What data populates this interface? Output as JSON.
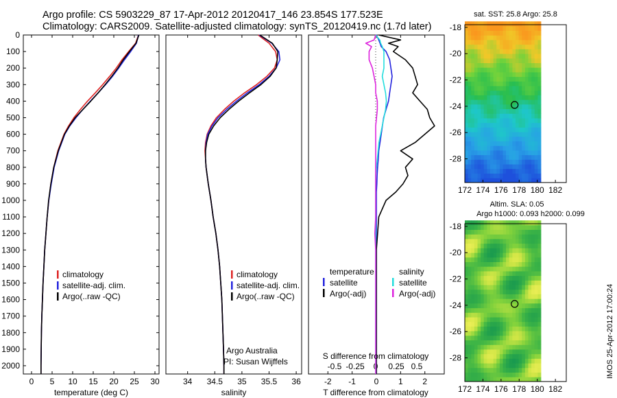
{
  "title_line1": "Argo profile: CS 5903229_87 17-Apr-2012 20120417_146 23.854S 177.523E",
  "title_line2": "Climatology: CARS2009. Satellite-adjusted climatology: synTS_20120419.nc (1.7d later)",
  "colors": {
    "climatology": "#dd2222",
    "satellite_adj": "#2222dd",
    "argo": "#000000",
    "sal_satellite": "#22dddd",
    "sal_argo": "#dd22dd",
    "circle": "#000000"
  },
  "depth_axis": {
    "ylim": [
      0,
      2050
    ],
    "ticks": [
      0,
      100,
      200,
      300,
      400,
      500,
      600,
      700,
      800,
      900,
      1000,
      1100,
      1200,
      1300,
      1400,
      1500,
      1600,
      1700,
      1800,
      1900,
      2000
    ]
  },
  "panels": {
    "temperature": {
      "xlabel": "temperature (deg C)",
      "xlim": [
        -2,
        31
      ],
      "xticks": [
        0,
        5,
        10,
        15,
        20,
        25,
        30
      ],
      "legend": [
        "climatology",
        "satellite-adj. clim.",
        "Argo(..raw -QC)"
      ]
    },
    "salinity": {
      "xlabel": "salinity",
      "xlim": [
        33.6,
        36.1
      ],
      "xticks": [
        34,
        34.5,
        35,
        35.5,
        36
      ],
      "xtick_labels": [
        "34",
        "34.5",
        "35",
        "35.5",
        "36"
      ],
      "legend": [
        "climatology",
        "satellite-adj. clim.",
        "Argo(..raw -QC)"
      ],
      "notes": [
        "Argo Australia",
        "PI: Susan Wijffels"
      ]
    },
    "difference": {
      "xlabel": "T difference from climatology",
      "top_label": "S difference from climatology",
      "xlim": [
        -2.8,
        2.8
      ],
      "t_ticks": [
        -2,
        -1,
        0,
        1,
        2
      ],
      "s_ticks": [
        -0.5,
        -0.25,
        0,
        0.25,
        0.5
      ],
      "s_tick_labels": [
        "-0.5",
        "-0.25",
        "0",
        "0.25",
        "0.5"
      ],
      "legend_temp_head": "temperature",
      "legend_temp": [
        "satellite",
        "Argo(-adj)"
      ],
      "legend_sal_head": "salinity",
      "legend_sal": [
        "satellite",
        "Argo(-adj)"
      ]
    }
  },
  "maps": {
    "sst_title": "sat. SST: 25.8 Argo: 25.8",
    "sla_title_1": "Altim. SLA: 0.05",
    "sla_title_2": "Argo h1000: 0.093 h2000: 0.099",
    "lon_ticks": [
      172,
      174,
      176,
      178,
      180,
      182
    ],
    "lat_ticks": [
      -18,
      -20,
      -22,
      -24,
      -26,
      -28
    ],
    "xlim": [
      172,
      183.2
    ],
    "ylim": [
      -29.8,
      -17.8
    ],
    "data_lon_max": 180.1,
    "argo_position": {
      "lon": 177.5,
      "lat": -23.9
    }
  },
  "footer": "IMOS 25-Apr-2012 17:00:24",
  "chart_data": [
    {
      "type": "line",
      "title": "",
      "xlabel": "temperature (deg C)",
      "ylabel": "",
      "xlim": [
        -2,
        31
      ],
      "ylim": [
        0,
        2050
      ],
      "y_reversed": true,
      "depth": [
        0,
        50,
        100,
        150,
        200,
        250,
        300,
        350,
        400,
        450,
        500,
        550,
        600,
        700,
        800,
        900,
        1000,
        1100,
        1200,
        1300,
        1400,
        1500,
        1600,
        1700,
        1800,
        1900,
        2000,
        2050
      ],
      "series": [
        {
          "name": "climatology",
          "x": [
            26.0,
            25.3,
            23.6,
            22.0,
            20.6,
            19.0,
            17.3,
            15.5,
            13.6,
            11.9,
            10.3,
            9.0,
            7.9,
            6.4,
            5.4,
            4.7,
            4.2,
            3.8,
            3.5,
            3.2,
            3.0,
            2.8,
            2.65,
            2.5,
            2.4,
            2.35,
            2.3,
            2.3
          ]
        },
        {
          "name": "satellite-adj. clim.",
          "x": [
            26.0,
            25.5,
            24.1,
            22.6,
            21.2,
            19.7,
            18.0,
            16.2,
            14.3,
            12.5,
            10.8,
            9.3,
            8.1,
            6.6,
            5.5,
            4.8,
            4.2,
            3.8,
            3.5,
            3.2,
            3.0,
            2.8,
            2.65,
            2.5,
            2.4,
            2.35,
            2.3,
            2.3
          ]
        },
        {
          "name": "Argo(..raw -QC)",
          "x": [
            26.1,
            25.4,
            23.8,
            22.3,
            21.0,
            19.5,
            17.9,
            16.2,
            14.4,
            12.5,
            10.6,
            9.2,
            8.0,
            6.5,
            5.4,
            4.7,
            4.15,
            3.8,
            3.5,
            3.2,
            3.0,
            2.8,
            2.65,
            2.5,
            2.4,
            2.35,
            2.3,
            2.3
          ]
        }
      ]
    },
    {
      "type": "line",
      "title": "",
      "xlabel": "salinity",
      "ylabel": "",
      "xlim": [
        33.6,
        36.1
      ],
      "ylim": [
        0,
        2050
      ],
      "y_reversed": true,
      "depth": [
        0,
        50,
        100,
        150,
        200,
        250,
        300,
        350,
        400,
        450,
        500,
        550,
        600,
        650,
        700,
        750,
        800,
        900,
        1000,
        1100,
        1200,
        1300,
        1400,
        1500,
        1600,
        1700,
        1800,
        1900,
        2000,
        2050
      ],
      "series": [
        {
          "name": "climatology",
          "x": [
            35.3,
            35.5,
            35.62,
            35.65,
            35.6,
            35.46,
            35.27,
            35.05,
            34.85,
            34.68,
            34.53,
            34.43,
            34.36,
            34.33,
            34.32,
            34.33,
            34.34,
            34.38,
            34.43,
            34.47,
            34.52,
            34.56,
            34.59,
            34.61,
            34.63,
            34.64,
            34.65,
            34.66,
            34.67,
            34.67
          ]
        },
        {
          "name": "satellite-adj. clim.",
          "x": [
            35.32,
            35.55,
            35.68,
            35.7,
            35.63,
            35.5,
            35.32,
            35.1,
            34.9,
            34.72,
            34.56,
            34.45,
            34.37,
            34.34,
            34.33,
            34.33,
            34.34,
            34.38,
            34.43,
            34.47,
            34.52,
            34.56,
            34.59,
            34.61,
            34.63,
            34.64,
            34.65,
            34.66,
            34.67,
            34.67
          ]
        },
        {
          "name": "Argo(..raw -QC)",
          "x": [
            35.33,
            35.56,
            35.66,
            35.65,
            35.63,
            35.52,
            35.35,
            35.14,
            34.94,
            34.76,
            34.6,
            34.48,
            34.39,
            34.35,
            34.33,
            34.33,
            34.34,
            34.38,
            34.43,
            34.47,
            34.52,
            34.56,
            34.59,
            34.61,
            34.63,
            34.64,
            34.65,
            34.66,
            34.67,
            34.67
          ]
        }
      ]
    },
    {
      "type": "line",
      "title": "",
      "xlabel": "T difference from climatology",
      "ylabel": "",
      "xlim": [
        -2.8,
        2.8
      ],
      "ylim": [
        0,
        2050
      ],
      "y_reversed": true,
      "depth": [
        0,
        30,
        50,
        70,
        100,
        150,
        200,
        250,
        300,
        350,
        400,
        450,
        500,
        550,
        600,
        650,
        700,
        750,
        800,
        850,
        900,
        950,
        1000,
        1100,
        1200,
        1300,
        1400,
        1500,
        1600,
        1700,
        1800,
        1900,
        2000,
        2050
      ],
      "series": [
        {
          "name": "temperature satellite",
          "units": "deg C",
          "x": [
            0.0,
            0.1,
            0.15,
            0.2,
            0.4,
            0.55,
            0.6,
            0.65,
            0.6,
            0.55,
            0.5,
            0.4,
            0.3,
            0.25,
            0.2,
            0.15,
            0.1,
            0.08,
            0.05,
            0.03,
            0.02,
            0.0,
            0.0,
            0.0,
            0.0,
            0.0,
            0.0,
            0.0,
            0.0,
            0.0,
            0.0,
            0.0,
            0.0,
            0.0
          ]
        },
        {
          "name": "temperature Argo(-adj)",
          "units": "deg C",
          "x": [
            0.1,
            1.0,
            0.5,
            0.9,
            0.7,
            1.2,
            1.5,
            1.6,
            1.7,
            1.5,
            1.8,
            2.1,
            2.2,
            2.4,
            2.0,
            1.6,
            1.0,
            1.5,
            1.2,
            1.3,
            1.1,
            0.8,
            0.4,
            0.1,
            0.05,
            0.0,
            0.0,
            0.0,
            0.0,
            0.0,
            0.0,
            0.0,
            0.0,
            0.0
          ]
        },
        {
          "name": "salinity satellite",
          "units": "S",
          "x": [
            0.0,
            0.05,
            0.06,
            0.08,
            0.1,
            0.1,
            0.1,
            0.08,
            0.1,
            0.12,
            0.13,
            0.12,
            0.1,
            0.08,
            0.06,
            0.04,
            0.03,
            0.02,
            0.01,
            0.0,
            0.0,
            0.0,
            0.0,
            0.0,
            0.0,
            0.0,
            0.0,
            0.0,
            0.0,
            0.0,
            0.0,
            0.0,
            0.0,
            0.0
          ]
        },
        {
          "name": "salinity Argo(-adj)",
          "units": "S",
          "x": [
            0.0,
            -0.02,
            -0.12,
            -0.05,
            -0.08,
            -0.08,
            -0.04,
            -0.02,
            0.0,
            0.0,
            0.02,
            0.02,
            0.01,
            0.0,
            0.0,
            0.0,
            0.0,
            0.0,
            0.0,
            0.0,
            0.0,
            0.0,
            0.0,
            0.0,
            -0.01,
            0.0,
            0.0,
            0.0,
            0.0,
            0.0,
            0.0,
            0.0,
            0.0,
            0.0
          ]
        }
      ]
    }
  ]
}
